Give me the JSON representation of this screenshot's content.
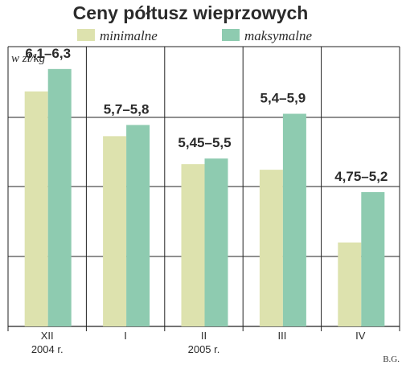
{
  "chart_data": {
    "type": "bar",
    "title": "Ceny półtusz wieprzowych",
    "unit_label": "w zł/kg",
    "categories": [
      "XII",
      "I",
      "II",
      "III",
      "IV"
    ],
    "year_labels": [
      {
        "text": "2004 r.",
        "under_category": 0
      },
      {
        "text": "2005 r.",
        "under_category": 2
      }
    ],
    "series": [
      {
        "name": "minimalne",
        "color": "#dde2ae",
        "values": [
          6.1,
          5.7,
          5.45,
          5.4,
          4.75
        ]
      },
      {
        "name": "maksymalne",
        "color": "#8ecbb0",
        "values": [
          6.3,
          5.8,
          5.5,
          5.9,
          5.2
        ]
      }
    ],
    "data_labels": [
      "6,1–6,3",
      "5,7–5,8",
      "5,45–5,5",
      "5,4–5,9",
      "4,75–5,2"
    ],
    "ylim": [
      4.0,
      6.5
    ],
    "grid": true,
    "legend": "top",
    "credit": "B.G."
  }
}
